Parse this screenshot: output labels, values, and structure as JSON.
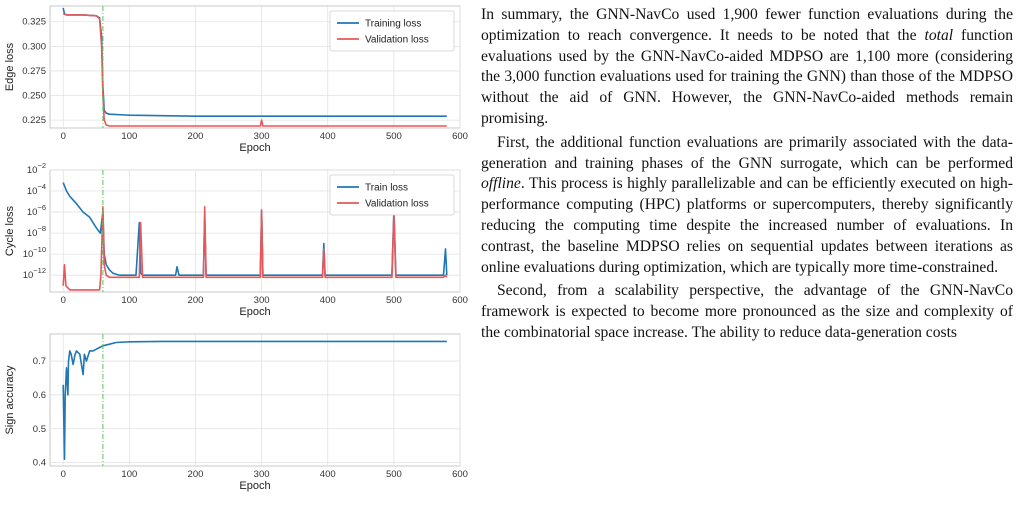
{
  "text": {
    "p1": "In summary, the GNN-NavCo used 1,900 fewer function evaluations during the optimization to reach convergence. It needs to be noted that the ",
    "p1_em": "total",
    "p1_rest": " function evaluations used by the GNN-NavCo-aided MDPSO are 1,100 more (considering the 3,000 function evaluations used for training the GNN) than those of the MDPSO without the aid of GNN. However, the GNN-NavCo-aided methods remain promising.",
    "p2": "First, the additional function evaluations are primarily associated with the data-generation and training phases of the GNN surrogate, which can be performed ",
    "p2_em": "offline",
    "p2_rest": ". This process is highly parallelizable and can be efficiently executed on high-performance computing (HPC) platforms or supercomputers, thereby significantly reducing the computing time despite the increased number of evaluations. In contrast, the baseline MDPSO relies on sequential updates between iterations as online evaluations during optimization, which are typically more time-constrained.",
    "p3": "Second, from a scalability perspective, the advantage of the GNN-NavCo framework is expected to become more pronounced as the size and complexity of the combinatorial space increase. The ability to reduce data-generation costs"
  },
  "chart_data": [
    {
      "type": "line",
      "xlabel": "Epoch",
      "ylabel": "Edge loss",
      "xlim": [
        -20,
        600
      ],
      "ylim": [
        0.217,
        0.341
      ],
      "xticks": [
        0,
        100,
        200,
        300,
        400,
        500,
        600
      ],
      "yticks": [
        0.225,
        0.25,
        0.275,
        0.3,
        0.325
      ],
      "ytick_labels": [
        "0.225",
        "0.250",
        "0.275",
        "0.300",
        "0.325"
      ],
      "grid": true,
      "legend": "top-right",
      "vline_x": 60,
      "series": [
        {
          "name": "Training loss",
          "color": "#1f77b4",
          "x": [
            0,
            2,
            5,
            10,
            30,
            50,
            55,
            58,
            60,
            62,
            65,
            70,
            100,
            200,
            300,
            400,
            500,
            580
          ],
          "y": [
            0.339,
            0.333,
            0.332,
            0.332,
            0.332,
            0.331,
            0.329,
            0.31,
            0.26,
            0.235,
            0.232,
            0.231,
            0.23,
            0.229,
            0.229,
            0.229,
            0.229,
            0.229
          ]
        },
        {
          "name": "Validation loss",
          "color": "#e8575a",
          "x": [
            0,
            5,
            10,
            30,
            50,
            55,
            58,
            60,
            62,
            65,
            70,
            100,
            200,
            298,
            300,
            302,
            400,
            500,
            580
          ],
          "y": [
            0.333,
            0.332,
            0.332,
            0.332,
            0.331,
            0.328,
            0.3,
            0.25,
            0.225,
            0.22,
            0.219,
            0.219,
            0.219,
            0.219,
            0.225,
            0.219,
            0.219,
            0.219,
            0.219
          ]
        }
      ]
    },
    {
      "type": "line",
      "xlabel": "Epoch",
      "ylabel": "Cycle loss",
      "yscale": "log",
      "xlim": [
        -20,
        600
      ],
      "ylim_log10": [
        -13.6,
        -2
      ],
      "xticks": [
        0,
        100,
        200,
        300,
        400,
        500,
        600
      ],
      "yticks_log10": [
        -2,
        -4,
        -6,
        -8,
        -10,
        -12
      ],
      "grid": true,
      "legend": "top-right",
      "vline_x": 60,
      "series": [
        {
          "name": "Train loss",
          "color": "#1f77b4",
          "x_log10": [
            0,
            5,
            10,
            20,
            30,
            40,
            50,
            56,
            60,
            62,
            65,
            70,
            75,
            85,
            100,
            110,
            115,
            117,
            120,
            140,
            170,
            172,
            175,
            200,
            212,
            214,
            216,
            230,
            298,
            300,
            302,
            350,
            392,
            394,
            396,
            450,
            497,
            500,
            503,
            540,
            575,
            578,
            580
          ],
          "y_log10": [
            -3.2,
            -4,
            -4.5,
            -5.2,
            -6,
            -6.5,
            -7.5,
            -8,
            -6,
            -10,
            -11,
            -11.5,
            -11.8,
            -12,
            -12,
            -12,
            -7,
            -11.8,
            -12,
            -12,
            -12,
            -11.2,
            -12,
            -12,
            -12,
            -6.5,
            -12,
            -12,
            -12,
            -5.8,
            -12,
            -12,
            -12,
            -9,
            -12,
            -12,
            -12,
            -5.8,
            -12,
            -12,
            -12,
            -9.5,
            -12
          ]
        },
        {
          "name": "Validation loss",
          "color": "#e8575a",
          "x_log10": [
            0,
            2,
            4,
            10,
            20,
            40,
            50,
            55,
            57,
            60,
            62,
            65,
            70,
            100,
            115,
            117,
            120,
            212,
            214,
            216,
            298,
            300,
            302,
            392,
            394,
            396,
            497,
            500,
            503,
            575,
            578,
            580
          ],
          "y_log10": [
            -13,
            -11,
            -13,
            -13.4,
            -13.4,
            -13.4,
            -13.4,
            -13.4,
            -12,
            -5.5,
            -11,
            -12,
            -12.2,
            -12.2,
            -12.2,
            -7,
            -12.2,
            -12.2,
            -5.5,
            -12.2,
            -12.2,
            -5.8,
            -12.2,
            -12.2,
            -9.5,
            -12.2,
            -12.2,
            -6.2,
            -12.2,
            -12.2,
            -12,
            -12.2
          ]
        }
      ]
    },
    {
      "type": "line",
      "xlabel": "Epoch",
      "ylabel": "Sign accuracy",
      "xlim": [
        -20,
        600
      ],
      "ylim": [
        0.39,
        0.78
      ],
      "xticks": [
        0,
        100,
        200,
        300,
        400,
        500,
        600
      ],
      "yticks": [
        0.4,
        0.5,
        0.6,
        0.7
      ],
      "grid": true,
      "vline_x": 60,
      "series": [
        {
          "name": "",
          "color": "#1f77b4",
          "x": [
            0,
            2,
            3,
            5,
            7,
            8,
            10,
            12,
            15,
            18,
            20,
            25,
            30,
            32,
            35,
            40,
            45,
            50,
            55,
            60,
            70,
            80,
            100,
            150,
            200,
            300,
            400,
            500,
            580
          ],
          "y": [
            0.63,
            0.41,
            0.6,
            0.68,
            0.6,
            0.7,
            0.73,
            0.72,
            0.69,
            0.72,
            0.73,
            0.72,
            0.66,
            0.72,
            0.7,
            0.73,
            0.73,
            0.735,
            0.74,
            0.745,
            0.75,
            0.755,
            0.757,
            0.758,
            0.758,
            0.758,
            0.758,
            0.758,
            0.758
          ]
        }
      ]
    }
  ]
}
